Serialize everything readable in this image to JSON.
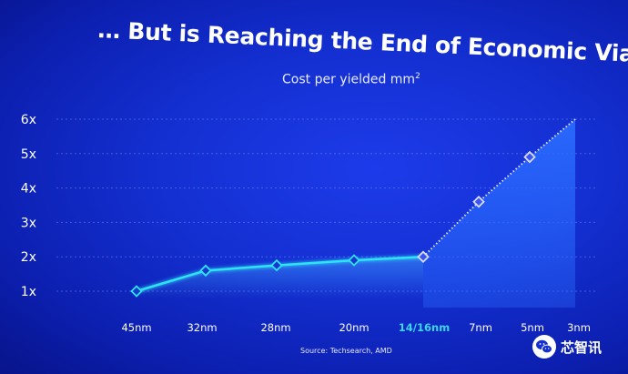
{
  "title": "… But is Reaching the End of Economic Viability",
  "subtitle_main": "Cost per yielded mm",
  "subtitle_sup": "2",
  "source": "Source: Techsearch, AMD",
  "watermark": "芯智讯",
  "colors": {
    "background": "#1430d2",
    "line_solid": "#2fe3f7",
    "line_dotted": "#d8ddff",
    "highlight_label": "#39d6f2",
    "area_fill": "#2a6bff"
  },
  "chart_data": {
    "type": "line",
    "title": "… But is Reaching the End of Economic Viability",
    "subtitle": "Cost per yielded mm²",
    "categories": [
      "45nm",
      "32nm",
      "28nm",
      "20nm",
      "14/16nm",
      "7nm",
      "5nm",
      "3nm"
    ],
    "highlight_category": "14/16nm",
    "y_tick_labels": [
      "1x",
      "2x",
      "3x",
      "4x",
      "5x",
      "6x"
    ],
    "ylim": [
      1,
      6
    ],
    "grid": true,
    "series": [
      {
        "values": [
          1.0,
          1.6,
          1.75,
          1.9,
          2.0,
          3.6,
          4.9,
          6.0
        ]
      }
    ]
  }
}
